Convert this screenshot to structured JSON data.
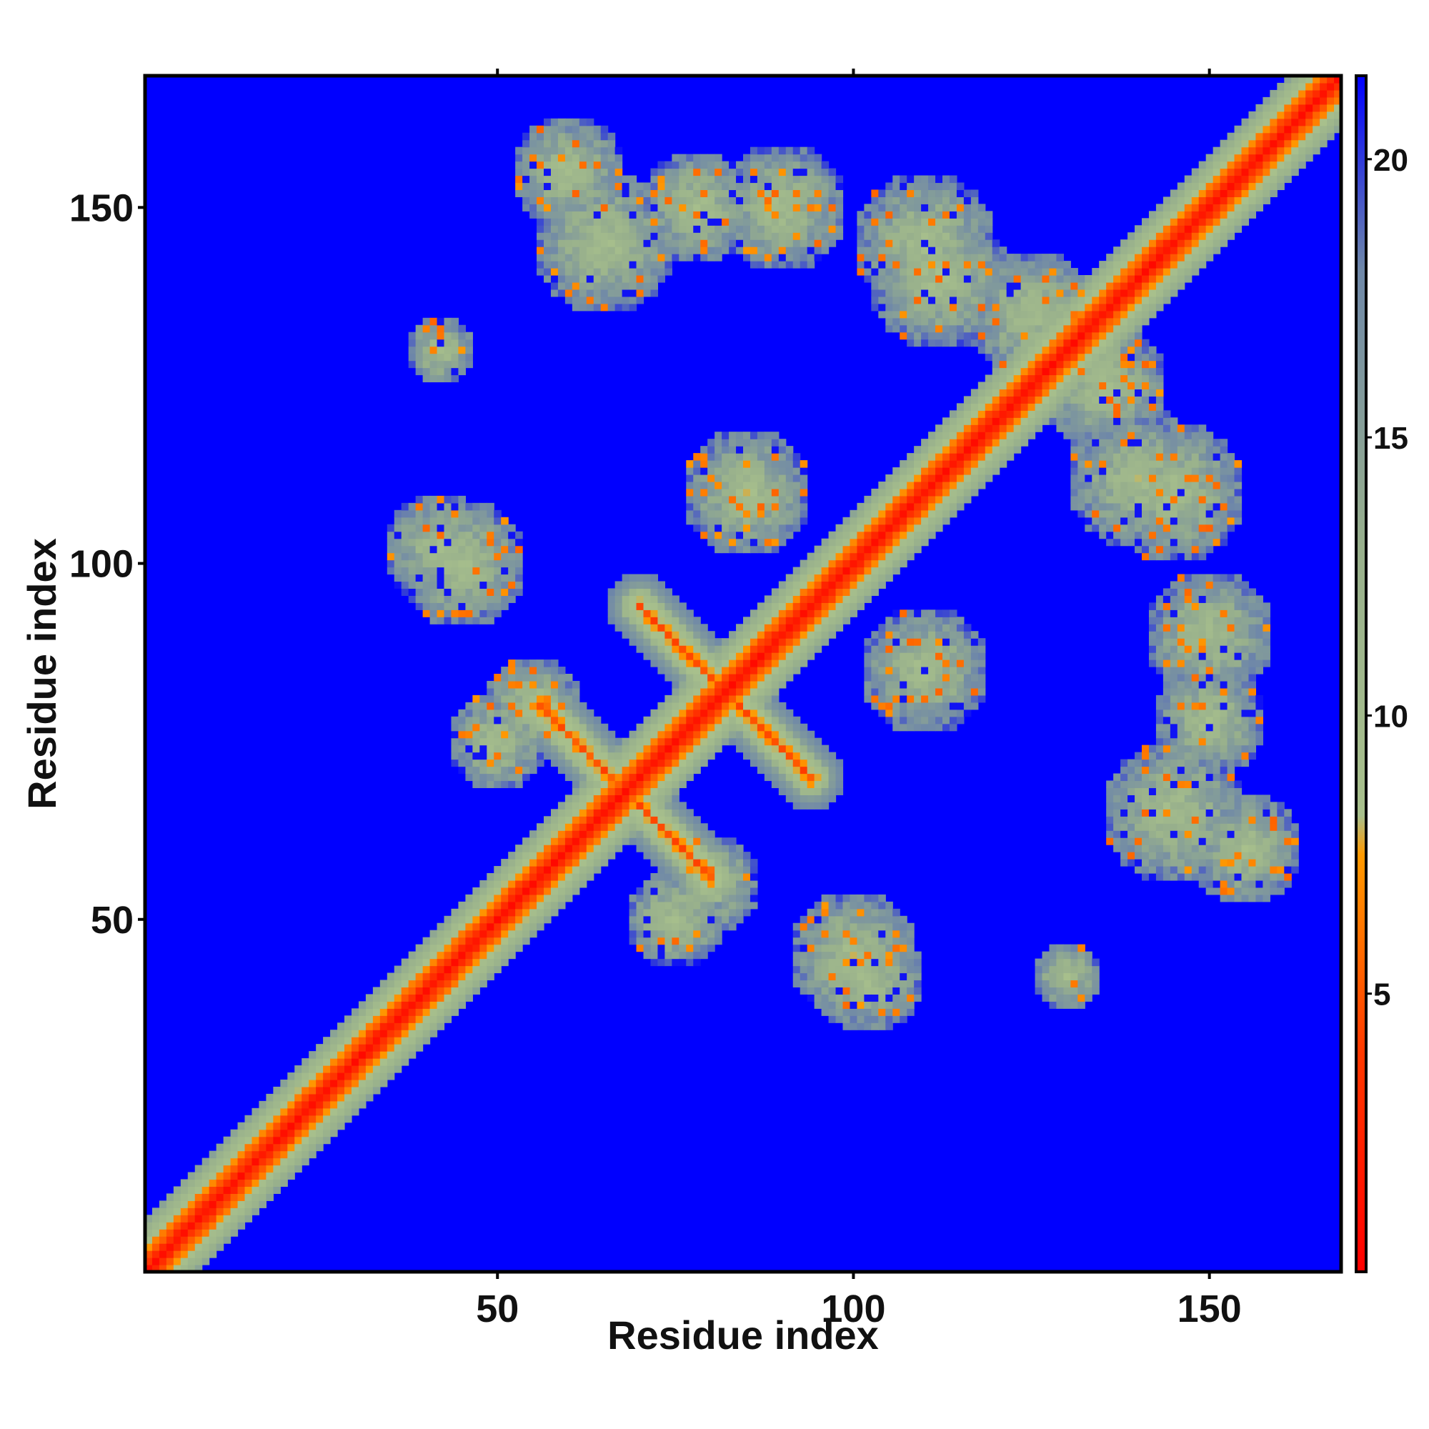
{
  "chart_data": {
    "type": "heatmap",
    "title": "",
    "xlabel": "Residue index",
    "ylabel": "Residue index",
    "xlim": [
      0.5,
      168.5
    ],
    "ylim": [
      0.5,
      168.5
    ],
    "n_residues": 168,
    "x_ticks": [
      50,
      100,
      150
    ],
    "y_ticks": [
      50,
      100,
      150
    ],
    "x_tick_labels": [
      "50",
      "100",
      "150"
    ],
    "y_tick_labels": [
      "50",
      "100",
      "150"
    ],
    "colorbar": {
      "range": [
        0,
        21.5
      ],
      "ticks": [
        5,
        10,
        15,
        20
      ],
      "tick_labels": [
        "5",
        "10",
        "15",
        "20"
      ],
      "stops": [
        {
          "value": 0,
          "color": "#ff0000"
        },
        {
          "value": 4,
          "color": "#ff3a00"
        },
        {
          "value": 7.5,
          "color": "#ff9a00"
        },
        {
          "value": 8.2,
          "color": "#a8c08c"
        },
        {
          "value": 13,
          "color": "#98b08c"
        },
        {
          "value": 18,
          "color": "#6f88a8"
        },
        {
          "value": 21.5,
          "color": "#0000ff"
        }
      ]
    },
    "background_value": 21.5,
    "diagonal_value": 0.5,
    "features": [
      {
        "kind": "diagonal_band",
        "start": 1,
        "end": 168,
        "width": 5
      },
      {
        "kind": "blob",
        "x": 60,
        "y": 155,
        "r": 8
      },
      {
        "kind": "blob",
        "x": 78,
        "y": 150,
        "r": 8
      },
      {
        "kind": "blob",
        "x": 110,
        "y": 145,
        "r": 10
      },
      {
        "kind": "blob",
        "x": 125,
        "y": 135,
        "r": 9
      },
      {
        "kind": "blob",
        "x": 42,
        "y": 102,
        "r": 8
      },
      {
        "kind": "blob",
        "x": 85,
        "y": 110,
        "r": 9
      },
      {
        "kind": "blob",
        "x": 140,
        "y": 112,
        "r": 10
      },
      {
        "kind": "blob",
        "x": 150,
        "y": 90,
        "r": 9
      },
      {
        "kind": "blob",
        "x": 145,
        "y": 65,
        "r": 10
      },
      {
        "kind": "blob",
        "x": 100,
        "y": 45,
        "r": 9
      },
      {
        "kind": "blob",
        "x": 75,
        "y": 50,
        "r": 7
      },
      {
        "kind": "blob",
        "x": 55,
        "y": 80,
        "r": 7
      },
      {
        "kind": "blob",
        "x": 130,
        "y": 42,
        "r": 5
      },
      {
        "kind": "blob",
        "x": 110,
        "y": 85,
        "r": 8
      },
      {
        "kind": "cross",
        "x": 82,
        "y": 82,
        "len": 12
      },
      {
        "kind": "cross",
        "x": 68,
        "y": 68,
        "len": 12
      }
    ],
    "grid": false,
    "legend": "colorbar-right"
  }
}
